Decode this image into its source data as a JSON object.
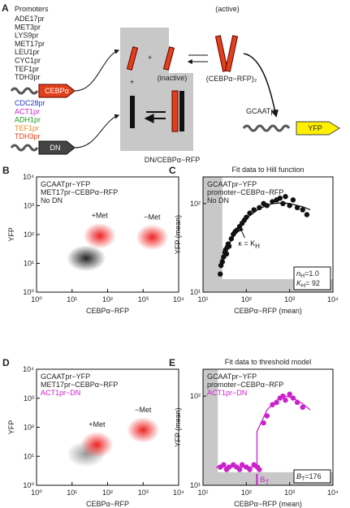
{
  "diagram": {
    "panel": "A",
    "promoters_title": "Promoters",
    "promoters": [
      "ADE17pr",
      "MET3pr",
      "LYS9pr",
      "MET17pr",
      "LEU1pr",
      "CYC1pr",
      "TEF1pr",
      "TDH3pr"
    ],
    "dn_promoters": [
      {
        "text": "CDC28pr",
        "color": "#2233cc"
      },
      {
        "text": "ACT1pr",
        "color": "#cc22cc"
      },
      {
        "text": "ADH1pr",
        "color": "#1a9a1a"
      },
      {
        "text": "TEF1pr",
        "color": "#f08a20"
      },
      {
        "text": "TDH3pr",
        "color": "#e0401a"
      }
    ],
    "cebp": "CEBPα",
    "dn": "DN",
    "plus": "+",
    "active": "(active)",
    "dimer": "(CEBPα−RFP)₂",
    "inactive": "(inactive)",
    "complex": "DN/CEBPα−RFP",
    "reporter_promoter": "GCAATpr",
    "reporter": "YFP"
  },
  "chart_data": [
    {
      "type": "cloud",
      "panel": "B",
      "xlabel": "CEBPα−RFP",
      "ylabel": "YFP",
      "xlim": [
        1,
        10000
      ],
      "ylim": [
        1,
        10000
      ],
      "log": true,
      "xticks": [
        {
          "value": 1,
          "label": "10⁰"
        },
        {
          "value": 10,
          "label": "10¹"
        },
        {
          "value": 100,
          "label": "10²"
        },
        {
          "value": 1000,
          "label": "10³"
        },
        {
          "value": 10000,
          "label": "10⁴"
        }
      ],
      "yticks": [
        {
          "value": 1,
          "label": "10⁰"
        },
        {
          "value": 10,
          "label": "10¹"
        },
        {
          "value": 100,
          "label": "10²"
        },
        {
          "value": 1000,
          "label": "10³"
        },
        {
          "value": 10000,
          "label": "10⁴"
        }
      ],
      "notes": [
        {
          "text": "GCAATpr−YFP",
          "color": "#222"
        },
        {
          "text": "MET17pr−CEBPα−RFP",
          "color": "#222"
        },
        {
          "text": "No DN",
          "color": "#222"
        }
      ],
      "clouds": [
        {
          "x": 25,
          "y": 15,
          "color": "#222222"
        },
        {
          "label": "+Met",
          "x": 60,
          "y": 90,
          "color": "#ee2222"
        },
        {
          "label": "−Met",
          "x": 1800,
          "y": 80,
          "color": "#ee2222"
        }
      ]
    },
    {
      "type": "scatter",
      "panel": "C",
      "title": "Fit data to Hill function",
      "xlabel": "CEBPα−RFP (mean)",
      "ylabel": "YFP (mean)",
      "xlim": [
        10,
        10000
      ],
      "ylim": [
        10,
        200
      ],
      "log": true,
      "xticks": [
        {
          "value": 10,
          "label": "10¹"
        },
        {
          "value": 100,
          "label": "10²"
        },
        {
          "value": 1000,
          "label": "10³"
        },
        {
          "value": 10000,
          "label": "10⁴"
        }
      ],
      "yticks": [
        {
          "value": 10,
          "label": "10¹"
        },
        {
          "value": 100,
          "label": "10²"
        }
      ],
      "notes": [
        {
          "text": "GCAATpr−YFP",
          "color": "#222"
        },
        {
          "text": "promoter−CEBPα−RFP",
          "color": "#222"
        },
        {
          "text": "No DN",
          "color": "#222"
        }
      ],
      "shade": {
        "x": 28,
        "y": 14
      },
      "color": "#111111",
      "x": [
        25,
        26,
        28,
        30,
        32,
        33,
        35,
        36,
        38,
        40,
        45,
        50,
        55,
        60,
        70,
        80,
        90,
        100,
        120,
        150,
        200,
        250,
        300,
        400,
        500,
        600,
        700,
        800,
        1000,
        1200,
        1500,
        2000,
        2500
      ],
      "y": [
        16,
        20,
        22,
        25,
        28,
        30,
        27,
        32,
        35,
        33,
        40,
        45,
        48,
        50,
        55,
        60,
        65,
        70,
        78,
        85,
        90,
        100,
        95,
        105,
        110,
        115,
        100,
        120,
        95,
        110,
        90,
        85,
        75
      ],
      "fit": {
        "x": [
          25,
          40,
          70,
          100,
          200,
          400,
          700,
          1000,
          2000,
          3000
        ],
        "y": [
          22,
          35,
          55,
          68,
          88,
          100,
          102,
          100,
          92,
          85
        ]
      },
      "marker": {
        "symbol": "κ = K",
        "sub": "H",
        "x": 92
      },
      "params": [
        {
          "symbol": "n",
          "sub": "H",
          "value": {
            "value": 1,
            "label": "=1.0"
          }
        },
        {
          "symbol": "K",
          "sub": "H",
          "value": {
            "value": 92,
            "label": "= 92"
          }
        }
      ]
    },
    {
      "type": "cloud",
      "panel": "D",
      "xlabel": "CEBPα−RFP",
      "ylabel": "YFP",
      "xlim": [
        1,
        10000
      ],
      "ylim": [
        1,
        10000
      ],
      "log": true,
      "xticks": [
        {
          "value": 1,
          "label": "10⁰"
        },
        {
          "value": 10,
          "label": "10¹"
        },
        {
          "value": 100,
          "label": "10²"
        },
        {
          "value": 1000,
          "label": "10³"
        },
        {
          "value": 10000,
          "label": "10⁴"
        }
      ],
      "yticks": [
        {
          "value": 1,
          "label": "10⁰"
        },
        {
          "value": 10,
          "label": "10¹"
        },
        {
          "value": 100,
          "label": "10²"
        },
        {
          "value": 1000,
          "label": "10³"
        },
        {
          "value": 10000,
          "label": "10⁴"
        }
      ],
      "notes": [
        {
          "text": "GCAATpr−YFP",
          "color": "#222"
        },
        {
          "text": "MET17pr−CEBPα−RFP",
          "color": "#222"
        },
        {
          "text": "ACT1pr−DN",
          "color": "#cc22cc"
        }
      ],
      "clouds": [
        {
          "x": 25,
          "y": 12,
          "color": "#999999"
        },
        {
          "label": "+Met",
          "x": 50,
          "y": 25,
          "color": "#ee2222"
        },
        {
          "label": "−Met",
          "x": 1000,
          "y": 80,
          "color": "#ee2222"
        }
      ]
    },
    {
      "type": "scatter",
      "panel": "E",
      "title": "Fit data to threshold model",
      "xlabel": "CEBPα−RFP (mean)",
      "ylabel": "YFP (mean)",
      "xlim": [
        10,
        10000
      ],
      "ylim": [
        10,
        200
      ],
      "log": true,
      "xticks": [
        {
          "value": 10,
          "label": "10¹"
        },
        {
          "value": 100,
          "label": "10²"
        },
        {
          "value": 1000,
          "label": "10³"
        },
        {
          "value": 10000,
          "label": "10⁴"
        }
      ],
      "yticks": [
        {
          "value": 10,
          "label": "10¹"
        },
        {
          "value": 100,
          "label": "10²"
        }
      ],
      "notes": [
        {
          "text": "GCAATpr−YFP",
          "color": "#222"
        },
        {
          "text": "promoter−CEBPα−RFP",
          "color": "#222"
        },
        {
          "text": "ACT1pr−DN",
          "color": "#cc22cc"
        }
      ],
      "shade": {
        "x": 22,
        "y": 14
      },
      "color": "#cc22cc",
      "x": [
        25,
        30,
        35,
        40,
        50,
        60,
        70,
        80,
        100,
        120,
        150,
        180,
        200,
        250,
        300,
        400,
        500,
        600,
        700,
        800,
        1000,
        1200,
        1500,
        2000
      ],
      "y": [
        16,
        17,
        15,
        16,
        17,
        16,
        15,
        17,
        16,
        15,
        17,
        16,
        15,
        50,
        60,
        80,
        85,
        95,
        100,
        90,
        105,
        95,
        85,
        75
      ],
      "fit": {
        "x": [
          20,
          176,
          176,
          300,
          500,
          800,
          1200,
          2000,
          3000
        ],
        "y": [
          16,
          16,
          40,
          70,
          90,
          100,
          95,
          82,
          70
        ]
      },
      "marker": {
        "symbol": "B",
        "sub": "T",
        "x": 176
      },
      "params": [
        {
          "symbol": "B",
          "sub": "T",
          "value": {
            "value": 176,
            "label": "=176"
          }
        }
      ]
    }
  ]
}
